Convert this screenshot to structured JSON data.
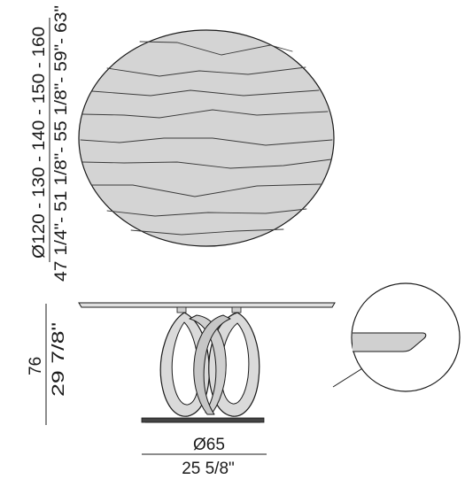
{
  "top_view": {
    "diameter_metric": "Ø120 - 130 - 140 - 150 - 160",
    "diameter_imperial": "47 1/4\"- 51 1/8\"- 55 1/8\"- 59\"- 63\""
  },
  "side_view": {
    "height_metric": "76",
    "height_imperial": "29 7/8\"",
    "base_diameter_metric": "Ø65",
    "base_diameter_imperial": "25 5/8\""
  },
  "colors": {
    "line": "#1a1a1a",
    "table_top_fill": "#d4d4d4",
    "base_fill": "#d9d9d9",
    "plinth_fill": "#444444",
    "background": "#ffffff"
  }
}
